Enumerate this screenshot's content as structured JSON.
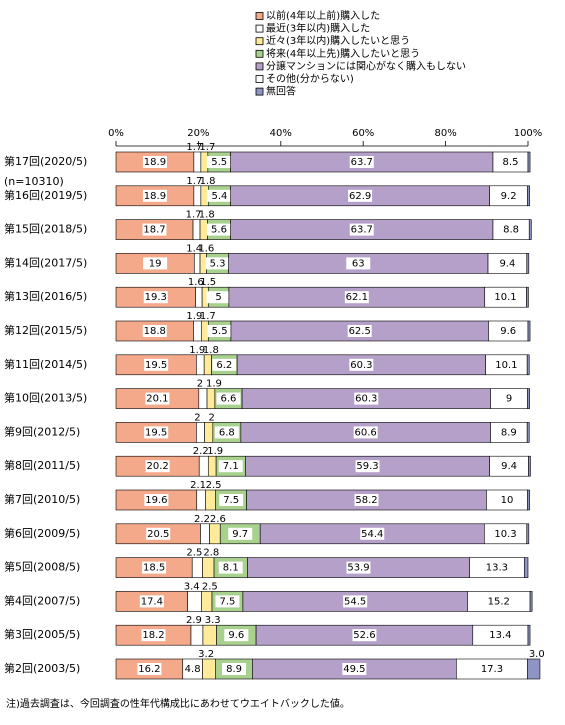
{
  "chart_data": {
    "type": "stacked-hbar",
    "categories": [
      "第17回(2020/5)",
      "第16回(2019/5)",
      "第15回(2018/5)",
      "第14回(2017/5)",
      "第13回(2016/5)",
      "第12回(2015/5)",
      "第11回(2014/5)",
      "第10回(2013/5)",
      "第9回(2012/5)",
      "第8回(2011/5)",
      "第7回(2010/5)",
      "第6回(2009/5)",
      "第5回(2008/5)",
      "第4回(2007/5)",
      "第3回(2005/5)",
      "第2回(2003/5)"
    ],
    "sample_note": "(n=10310)",
    "xlim": [
      0,
      100
    ],
    "xticks": [
      {
        "value": 0,
        "label": "0%"
      },
      {
        "value": 20,
        "label": "20%"
      },
      {
        "value": 40,
        "label": "40%"
      },
      {
        "value": 60,
        "label": "60%"
      },
      {
        "value": 80,
        "label": "80%"
      },
      {
        "value": 100,
        "label": "100%"
      }
    ],
    "series": [
      {
        "name": "以前(4年以上前)購入した",
        "color": "#f4a98a",
        "values": [
          18.9,
          18.9,
          18.7,
          19.0,
          19.3,
          18.8,
          19.5,
          20.1,
          19.5,
          20.2,
          19.6,
          20.5,
          18.5,
          17.4,
          18.2,
          16.2
        ]
      },
      {
        "name": "最近(3年以内)購入した",
        "color": "#ffffff",
        "values": [
          1.7,
          1.7,
          1.7,
          1.4,
          1.6,
          1.9,
          1.9,
          2.0,
          2.0,
          2.2,
          2.1,
          2.2,
          2.5,
          3.4,
          2.9,
          4.8
        ]
      },
      {
        "name": "近々(3年以内)購入したいと思う",
        "color": "#ffeb99",
        "values": [
          1.7,
          1.8,
          1.8,
          1.6,
          1.5,
          1.7,
          1.8,
          1.9,
          2.0,
          1.9,
          2.5,
          2.6,
          2.8,
          2.5,
          3.3,
          3.2
        ]
      },
      {
        "name": "将来(4年以上先)購入したいと思う",
        "color": "#a9d18e",
        "values": [
          5.5,
          5.4,
          5.6,
          5.3,
          5.0,
          5.5,
          6.2,
          6.6,
          6.8,
          7.1,
          7.5,
          9.7,
          8.1,
          7.5,
          9.6,
          8.9
        ]
      },
      {
        "name": "分譲マンションには関心がなく購入もしない",
        "color": "#b4a0c8",
        "values": [
          63.7,
          62.9,
          63.7,
          63.0,
          62.1,
          62.5,
          60.3,
          60.3,
          60.6,
          59.3,
          58.2,
          54.4,
          53.9,
          54.5,
          52.6,
          49.5
        ]
      },
      {
        "name": "その他(分からない)",
        "color": "#ffffff",
        "values": [
          8.5,
          9.2,
          8.8,
          9.4,
          10.1,
          9.6,
          10.1,
          9.0,
          8.9,
          9.4,
          10.0,
          10.3,
          13.3,
          15.2,
          13.4,
          17.3
        ]
      },
      {
        "name": "無回答",
        "color": "#8e94c4",
        "values": [
          0.5,
          0.5,
          0.5,
          0.5,
          0.5,
          0.5,
          0.5,
          0.5,
          0.5,
          0.5,
          0.5,
          0.5,
          0.9,
          0.5,
          0.5,
          3.0
        ],
        "value_labels": [
          null,
          null,
          null,
          null,
          null,
          null,
          null,
          null,
          null,
          null,
          null,
          null,
          null,
          null,
          null,
          "3.0"
        ]
      }
    ],
    "footnote": "注)過去調査は、今回調査の性年代構成比にあわせてウエイトバックした値。"
  }
}
